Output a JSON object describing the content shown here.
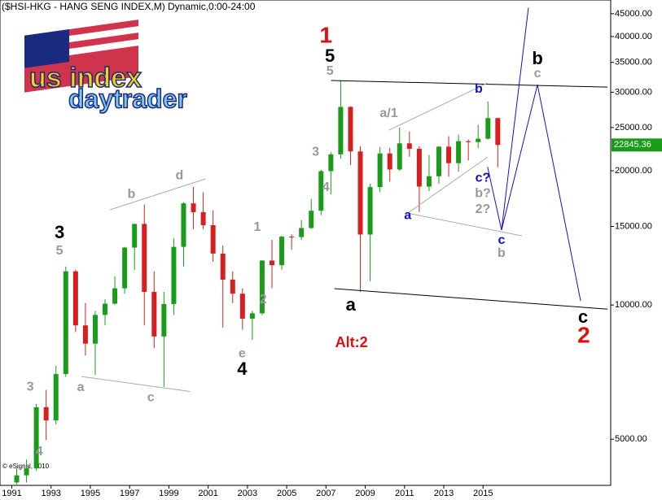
{
  "chart_data": {
    "type": "candlestick",
    "title": "($HSI-HKG - HANG SENG INDEX,M) Dynamic,0:00-24:00",
    "copyright": "© eSignal, 2010",
    "logo": {
      "line1": "us index",
      "line2": "daytrader"
    },
    "log_scale": true,
    "xlim": [
      1990.4,
      2021.5
    ],
    "ylim": [
      3940,
      48300
    ],
    "xticks": [
      1991,
      1993,
      1995,
      1997,
      1999,
      2001,
      2003,
      2005,
      2007,
      2009,
      2011,
      2013,
      2015
    ],
    "yticks": [
      {
        "value": 5000,
        "label": "5000.00"
      },
      {
        "value": 10000,
        "label": "10000.00"
      },
      {
        "value": 15000,
        "label": "15000.00"
      },
      {
        "value": 20000,
        "label": "20000.00"
      },
      {
        "value": 25000,
        "label": "25000.00"
      },
      {
        "value": 30000,
        "label": "30000.00"
      },
      {
        "value": 35000,
        "label": "35000.00"
      },
      {
        "value": 40000,
        "label": "40000.00"
      },
      {
        "value": 45000,
        "label": "45000.00"
      }
    ],
    "last_value": 22845.36,
    "up_color": "#1a9c1a",
    "down_color": "#d42020",
    "x": [
      1991.25,
      1991.75,
      1992.25,
      1992.75,
      1993.25,
      1993.75,
      1994.25,
      1994.75,
      1995.25,
      1995.75,
      1996.25,
      1996.75,
      1997.25,
      1997.75,
      1998.25,
      1998.75,
      1999.25,
      1999.75,
      2000.25,
      2000.75,
      2001.25,
      2001.75,
      2002.25,
      2002.75,
      2003.25,
      2003.75,
      2004.25,
      2004.75,
      2005.25,
      2005.75,
      2006.25,
      2006.75,
      2007.25,
      2007.75,
      2008.25,
      2008.75,
      2009.25,
      2009.75,
      2010.25,
      2010.75,
      2011.25,
      2011.75,
      2012.25,
      2012.75,
      2013.25,
      2013.75,
      2014.25,
      2014.75,
      2015.25,
      2015.75
    ],
    "open": [
      4000,
      4150,
      4300,
      5900,
      5510,
      7000,
      11900,
      9000,
      8190,
      9500,
      10070,
      10900,
      13450,
      15200,
      10700,
      8500,
      10050,
      13500,
      16900,
      16150,
      15100,
      13040,
      11400,
      10600,
      9320,
      9580,
      12580,
      12280,
      14230,
      14200,
      14880,
      16270,
      19960,
      21770,
      27810,
      22100,
      14390,
      18380,
      21870,
      20130,
      23040,
      22400,
      18430,
      19440,
      22650,
      20800,
      23300,
      23190,
      23600,
      26250
    ],
    "high": [
      4300,
      4500,
      6000,
      6450,
      7300,
      12200,
      12000,
      10100,
      9700,
      10300,
      11600,
      13500,
      15200,
      16800,
      11900,
      10700,
      14100,
      17000,
      18400,
      17900,
      16300,
      13600,
      11900,
      10900,
      9700,
      12600,
      14000,
      14300,
      14400,
      15500,
      17300,
      20100,
      22000,
      31900,
      27900,
      22700,
      18700,
      22600,
      22500,
      24990,
      24470,
      22700,
      21700,
      22700,
      23900,
      24100,
      23500,
      25360,
      28590,
      26300
    ],
    "low": [
      3960,
      4000,
      4250,
      4980,
      5400,
      6900,
      8700,
      7700,
      6970,
      9000,
      10000,
      10600,
      12000,
      9000,
      8000,
      6550,
      9500,
      12200,
      14800,
      14800,
      12500,
      8900,
      10100,
      8800,
      8350,
      9500,
      10900,
      12000,
      13300,
      14000,
      14800,
      15900,
      17700,
      21300,
      20600,
      10700,
      11300,
      17900,
      18900,
      20000,
      21500,
      16170,
      18000,
      18700,
      19400,
      19900,
      21100,
      22500,
      23500,
      20370
    ],
    "close": [
      4150,
      4300,
      5900,
      5510,
      7000,
      11900,
      9000,
      8190,
      9500,
      10070,
      10900,
      13450,
      15200,
      10700,
      8500,
      10050,
      13500,
      16900,
      16150,
      15100,
      13040,
      11400,
      10600,
      9320,
      9580,
      12580,
      12280,
      14230,
      14200,
      14880,
      16270,
      19960,
      21770,
      27810,
      22100,
      14390,
      18380,
      21870,
      20130,
      23040,
      22400,
      18430,
      19440,
      22650,
      20800,
      23300,
      23190,
      23600,
      26250,
      22845.36
    ],
    "lines": [
      {
        "color": "#000000",
        "x": [
          2007.26,
          2021.34
        ],
        "y": [
          31880,
          30800
        ]
      },
      {
        "color": "#000000",
        "x": [
          2007.43,
          2021.34
        ],
        "y": [
          10880,
          9790
        ]
      },
      {
        "color": "#aaaaaa",
        "x": [
          1994.55,
          2000.08
        ],
        "y": [
          6910,
          6400
        ]
      },
      {
        "color": "#aaaaaa",
        "x": [
          1996.0,
          2000.87
        ],
        "y": [
          16350,
          19180
        ]
      },
      {
        "color": "#aaaaaa",
        "x": [
          2010.2,
          2015.23
        ],
        "y": [
          24650,
          31470
        ]
      },
      {
        "color": "#aaaaaa",
        "x": [
          2011.16,
          2015.23
        ],
        "y": [
          16070,
          21460
        ]
      },
      {
        "color": "#aaaaaa",
        "x": [
          2011.16,
          2016.98
        ],
        "y": [
          16070,
          14290
        ]
      },
      {
        "color": "#1010c8",
        "x": [
          2015.23,
          2015.94,
          2017.31
        ],
        "y": [
          20400,
          14720,
          46400
        ]
      },
      {
        "color": "#1010c8",
        "x": [
          2015.94,
          2017.77,
          2019.97
        ],
        "y": [
          14720,
          31200,
          10210
        ]
      }
    ],
    "annotations": [
      {
        "text": "1",
        "x": 2007.0,
        "y": 40000,
        "color": "#e01010"
      },
      {
        "text": "5",
        "x": 2007.2,
        "y": 36000,
        "color": "#000000"
      },
      {
        "text": "5",
        "x": 2007.2,
        "y": 33400,
        "color": "#999999"
      },
      {
        "text": "3",
        "x": 1993.43,
        "y": 14480,
        "color": "#000000"
      },
      {
        "text": "5",
        "x": 1993.43,
        "y": 13200,
        "color": "#999999"
      },
      {
        "text": "b",
        "x": 1997.09,
        "y": 17700,
        "color": "#999999"
      },
      {
        "text": "d",
        "x": 1999.54,
        "y": 19500,
        "color": "#999999"
      },
      {
        "text": "a",
        "x": 1994.51,
        "y": 6520,
        "color": "#999999"
      },
      {
        "text": "c",
        "x": 1998.08,
        "y": 6190,
        "color": "#999999"
      },
      {
        "text": "e",
        "x": 2002.73,
        "y": 7770,
        "color": "#999999"
      },
      {
        "text": "4",
        "x": 2002.73,
        "y": 7150,
        "color": "#000000"
      },
      {
        "text": "1",
        "x": 2003.5,
        "y": 14910,
        "color": "#999999"
      },
      {
        "text": "2",
        "x": 2003.8,
        "y": 10260,
        "color": "#999999"
      },
      {
        "text": "3",
        "x": 2006.47,
        "y": 22020,
        "color": "#999999"
      },
      {
        "text": "4",
        "x": 2007.0,
        "y": 18320,
        "color": "#999999"
      },
      {
        "text": "a",
        "x": 2008.26,
        "y": 9960,
        "color": "#000000"
      },
      {
        "text": "a/1",
        "x": 2010.2,
        "y": 26850,
        "color": "#999999"
      },
      {
        "text": "a",
        "x": 2011.16,
        "y": 15870,
        "color": "#1010c8"
      },
      {
        "text": "b",
        "x": 2014.78,
        "y": 30470,
        "color": "#1010c8"
      },
      {
        "text": "c?",
        "x": 2014.99,
        "y": 19240,
        "color": "#1010c8"
      },
      {
        "text": "b?",
        "x": 2014.99,
        "y": 17770,
        "color": "#999999"
      },
      {
        "text": "2?",
        "x": 2014.99,
        "y": 16350,
        "color": "#999999"
      },
      {
        "text": "c",
        "x": 2015.94,
        "y": 13940,
        "color": "#1010c8"
      },
      {
        "text": "b",
        "x": 2015.94,
        "y": 13040,
        "color": "#999999"
      },
      {
        "text": "b",
        "x": 2017.77,
        "y": 35550,
        "color": "#000000"
      },
      {
        "text": "c",
        "x": 2017.77,
        "y": 32980,
        "color": "#999999"
      },
      {
        "text": "c",
        "x": 2020.09,
        "y": 9350,
        "color": "#000000"
      },
      {
        "text": "2",
        "x": 2020.13,
        "y": 8490,
        "color": "#e01010"
      },
      {
        "text": "Alt:2",
        "x": 2008.3,
        "y": 8210,
        "color": "#e01010"
      },
      {
        "text": "3",
        "x": 1991.94,
        "y": 6540,
        "color": "#999999"
      },
      {
        "text": "4",
        "x": 1992.4,
        "y": 4680,
        "color": "#999999"
      }
    ]
  }
}
